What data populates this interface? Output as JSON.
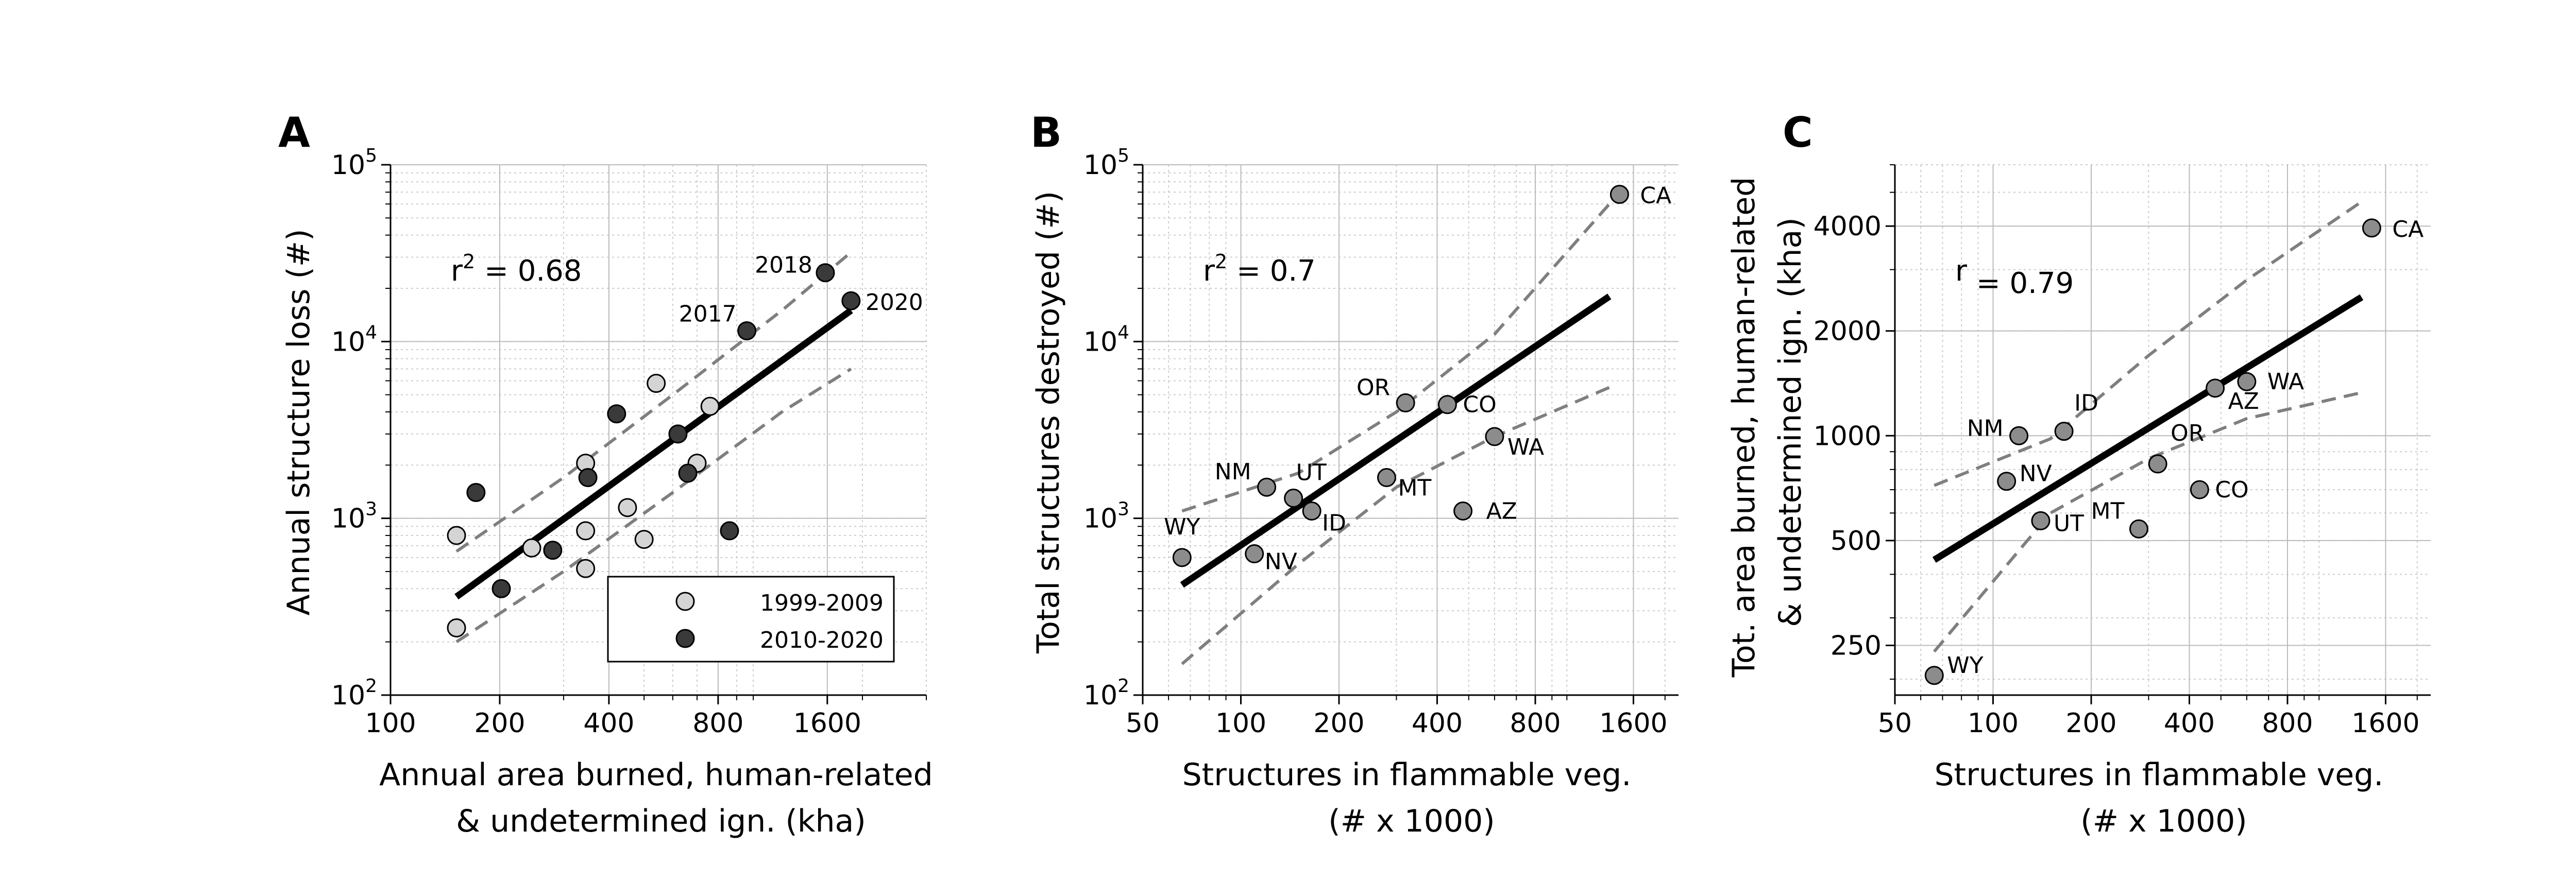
{
  "chart_data": [
    {
      "panel_label": "A",
      "type": "scatter",
      "x_scale": "log",
      "y_scale": "log",
      "xlim": [
        100,
        3000
      ],
      "ylim": [
        100,
        100000
      ],
      "x_ticks": [
        100,
        200,
        400,
        800,
        1600
      ],
      "x_tick_labels": [
        "100",
        "200",
        "400",
        "800",
        "1600"
      ],
      "y_ticks": [
        100,
        1000,
        10000,
        100000
      ],
      "y_tick_labels": [
        [
          "10",
          "2"
        ],
        [
          "10",
          "3"
        ],
        [
          "10",
          "4"
        ],
        [
          "10",
          "5"
        ]
      ],
      "xlabel": [
        "Annual area burned, human-related",
        "& undetermined ign. (kha)"
      ],
      "ylabel": [
        "Annual structure loss (#)"
      ],
      "stat": {
        "prefix": "r",
        "sup": "2",
        "value": " = 0.68"
      },
      "grid": true,
      "legend": {
        "position": "lower right",
        "entries": [
          {
            "label": "1999-2009",
            "color": "#d4d4d4"
          },
          {
            "label": "2010-2020",
            "color": "#3a3a3a"
          }
        ]
      },
      "colors": {
        "light": "#d4d4d4",
        "dark": "#3a3a3a",
        "line": "#000000",
        "ci": "#7f7f7f"
      },
      "series": [
        {
          "name": "1999-2009",
          "color": "#d4d4d4",
          "points": [
            {
              "x": 152,
              "y": 800
            },
            {
              "x": 152,
              "y": 240
            },
            {
              "x": 245,
              "y": 680
            },
            {
              "x": 345,
              "y": 2050
            },
            {
              "x": 345,
              "y": 850
            },
            {
              "x": 345,
              "y": 520
            },
            {
              "x": 450,
              "y": 1150
            },
            {
              "x": 500,
              "y": 760
            },
            {
              "x": 540,
              "y": 5800
            },
            {
              "x": 700,
              "y": 2050
            },
            {
              "x": 760,
              "y": 4300
            }
          ]
        },
        {
          "name": "2010-2020",
          "color": "#3a3a3a",
          "points": [
            {
              "x": 172,
              "y": 1400
            },
            {
              "x": 202,
              "y": 400
            },
            {
              "x": 280,
              "y": 660
            },
            {
              "x": 350,
              "y": 1700
            },
            {
              "x": 420,
              "y": 3900
            },
            {
              "x": 620,
              "y": 3000
            },
            {
              "x": 660,
              "y": 1800
            },
            {
              "x": 860,
              "y": 850
            },
            {
              "x": 960,
              "y": 11500,
              "label": "2017"
            },
            {
              "x": 1580,
              "y": 24500,
              "label": "2018"
            },
            {
              "x": 1860,
              "y": 17000,
              "label": "2020"
            }
          ]
        }
      ],
      "fit": {
        "x": [
          152,
          1860
        ],
        "y": [
          360,
          15000
        ]
      },
      "ci_upper": {
        "x": [
          152,
          300,
          600,
          1200,
          1860
        ],
        "y": [
          650,
          1700,
          5000,
          15000,
          32000
        ]
      },
      "ci_lower": {
        "x": [
          152,
          300,
          600,
          1200,
          1860
        ],
        "y": [
          200,
          500,
          1400,
          4000,
          7000
        ]
      }
    },
    {
      "panel_label": "B",
      "type": "scatter",
      "x_scale": "log",
      "y_scale": "log",
      "xlim": [
        50,
        2200
      ],
      "ylim": [
        100,
        100000
      ],
      "x_ticks": [
        50,
        100,
        200,
        400,
        800,
        1600
      ],
      "x_tick_labels": [
        "50",
        "100",
        "200",
        "400",
        "800",
        "1600"
      ],
      "y_ticks": [
        100,
        1000,
        10000,
        100000
      ],
      "y_tick_labels": [
        [
          "10",
          "2"
        ],
        [
          "10",
          "3"
        ],
        [
          "10",
          "4"
        ],
        [
          "10",
          "5"
        ]
      ],
      "xlabel": [
        "Structures in flammable veg.",
        "(# x 1000)"
      ],
      "ylabel": [
        "Total structures destroyed (#)"
      ],
      "stat": {
        "prefix": "r",
        "sup": "2",
        "value": " = 0.7"
      },
      "grid": true,
      "colors": {
        "point": "#8c8c8c",
        "line": "#000000",
        "ci": "#7f7f7f"
      },
      "series": [
        {
          "name": "",
          "color": "#8c8c8c",
          "points": [
            {
              "x": 66,
              "y": 600,
              "label": "WY"
            },
            {
              "x": 110,
              "y": 630,
              "label": "NV"
            },
            {
              "x": 120,
              "y": 1500,
              "label": "NM"
            },
            {
              "x": 145,
              "y": 1300,
              "label": "UT"
            },
            {
              "x": 165,
              "y": 1100,
              "label": "ID"
            },
            {
              "x": 280,
              "y": 1700,
              "label": "MT"
            },
            {
              "x": 320,
              "y": 4500,
              "label": "OR"
            },
            {
              "x": 430,
              "y": 4400,
              "label": "CO"
            },
            {
              "x": 480,
              "y": 1100,
              "label": "AZ"
            },
            {
              "x": 600,
              "y": 2900,
              "label": "WA"
            },
            {
              "x": 1450,
              "y": 68000,
              "label": "CA"
            }
          ]
        }
      ],
      "fit": {
        "x": [
          66,
          1350
        ],
        "y": [
          420,
          18000
        ]
      },
      "ci_upper": {
        "x": [
          66,
          150,
          300,
          600,
          1350
        ],
        "y": [
          1100,
          1800,
          4000,
          11000,
          60000
        ]
      },
      "ci_lower": {
        "x": [
          66,
          150,
          300,
          600,
          1350
        ],
        "y": [
          150,
          550,
          1500,
          2900,
          5500
        ]
      }
    },
    {
      "panel_label": "C",
      "type": "scatter",
      "x_scale": "log",
      "y_scale": "log",
      "xlim": [
        50,
        2200
      ],
      "ylim": [
        180,
        6000
      ],
      "x_ticks": [
        50,
        100,
        200,
        400,
        800,
        1600
      ],
      "x_tick_labels": [
        "50",
        "100",
        "200",
        "400",
        "800",
        "1600"
      ],
      "y_ticks": [
        250,
        500,
        1000,
        2000,
        4000
      ],
      "y_tick_labels": [
        "250",
        "500",
        "1000",
        "2000",
        "4000"
      ],
      "xlabel": [
        "Structures in flammable veg.",
        "(# x 1000)"
      ],
      "ylabel": [
        "Tot. area burned, human-related",
        "& undetermined ign. (kha)"
      ],
      "stat": {
        "prefix": "r",
        "sup": "",
        "value": " = 0.79"
      },
      "grid": true,
      "colors": {
        "point": "#8c8c8c",
        "line": "#000000",
        "ci": "#7f7f7f"
      },
      "series": [
        {
          "name": "",
          "color": "#8c8c8c",
          "points": [
            {
              "x": 66,
              "y": 205,
              "label": "WY"
            },
            {
              "x": 110,
              "y": 740,
              "label": "NV"
            },
            {
              "x": 120,
              "y": 1000,
              "label": "NM"
            },
            {
              "x": 140,
              "y": 570,
              "label": "UT"
            },
            {
              "x": 165,
              "y": 1030,
              "label": "ID"
            },
            {
              "x": 280,
              "y": 540,
              "label": "MT"
            },
            {
              "x": 320,
              "y": 830,
              "label": "OR"
            },
            {
              "x": 430,
              "y": 700,
              "label": "CO"
            },
            {
              "x": 480,
              "y": 1370,
              "label": "AZ"
            },
            {
              "x": 600,
              "y": 1430,
              "label": "WA"
            },
            {
              "x": 1450,
              "y": 3950,
              "label": "CA"
            }
          ]
        }
      ],
      "fit": {
        "x": [
          66,
          1350
        ],
        "y": [
          440,
          2500
        ]
      },
      "ci_upper": {
        "x": [
          66,
          150,
          300,
          600,
          1350
        ],
        "y": [
          720,
          980,
          1700,
          2800,
          4700
        ]
      },
      "ci_lower": {
        "x": [
          66,
          150,
          300,
          600,
          1350
        ],
        "y": [
          240,
          600,
          860,
          1120,
          1330
        ]
      }
    }
  ]
}
